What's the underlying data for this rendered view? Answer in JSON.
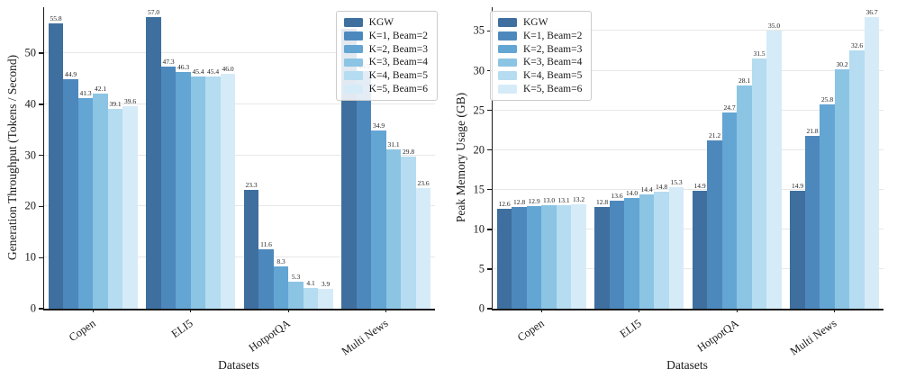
{
  "figure": {
    "xlabel": "Datasets",
    "series_colors": [
      "#3e6f9f",
      "#4d88bd",
      "#63a5d3",
      "#8cc4e4",
      "#b5dcf0",
      "#d6ebf8"
    ],
    "grid_color": "#e7e7e7",
    "axis_color": "#1a1a1a",
    "legend_labels": [
      "KGW",
      "K=1, Beam=2",
      "K=2, Beam=3",
      "K=3, Beam=4",
      "K=4, Beam=5",
      "K=5, Beam=6"
    ]
  },
  "chart_data": [
    {
      "type": "bar",
      "title": "",
      "xlabel": "Datasets",
      "ylabel": "Generation Throughput (Tokens / Second)",
      "categories": [
        "Copen",
        "ELI5",
        "HotpotQA",
        "Multi News"
      ],
      "series": [
        {
          "name": "KGW",
          "values": [
            55.8,
            57.0,
            23.3,
            54.7
          ]
        },
        {
          "name": "K=1, Beam=2",
          "values": [
            44.9,
            47.3,
            11.6,
            46.5
          ]
        },
        {
          "name": "K=2, Beam=3",
          "values": [
            41.3,
            46.3,
            8.3,
            34.9
          ]
        },
        {
          "name": "K=3, Beam=4",
          "values": [
            42.1,
            45.4,
            5.3,
            31.1
          ]
        },
        {
          "name": "K=4, Beam=5",
          "values": [
            39.1,
            45.4,
            4.1,
            29.8
          ]
        },
        {
          "name": "K=5, Beam=6",
          "values": [
            39.6,
            46.0,
            3.9,
            23.6
          ]
        }
      ],
      "ylim": [
        0,
        59
      ],
      "yticks": [
        0,
        10,
        20,
        30,
        40,
        50
      ],
      "grid": true,
      "legend_position": "top-right"
    },
    {
      "type": "bar",
      "title": "",
      "xlabel": "Datasets",
      "ylabel": "Peak Memory Usage (GB)",
      "categories": [
        "Copen",
        "ELI5",
        "HotpotQA",
        "Multi News"
      ],
      "series": [
        {
          "name": "KGW",
          "values": [
            12.6,
            12.8,
            14.9,
            14.9
          ]
        },
        {
          "name": "K=1, Beam=2",
          "values": [
            12.8,
            13.6,
            21.2,
            21.8
          ]
        },
        {
          "name": "K=2, Beam=3",
          "values": [
            12.9,
            14.0,
            24.7,
            25.8
          ]
        },
        {
          "name": "K=3, Beam=4",
          "values": [
            13.0,
            14.4,
            28.1,
            30.2
          ]
        },
        {
          "name": "K=4, Beam=5",
          "values": [
            13.1,
            14.8,
            31.5,
            32.6
          ]
        },
        {
          "name": "K=5, Beam=6",
          "values": [
            13.2,
            15.3,
            35.0,
            36.7
          ]
        }
      ],
      "ylim": [
        0,
        38
      ],
      "yticks": [
        0,
        5,
        10,
        15,
        20,
        25,
        30,
        35
      ],
      "grid": true,
      "legend_position": "top-left"
    }
  ]
}
